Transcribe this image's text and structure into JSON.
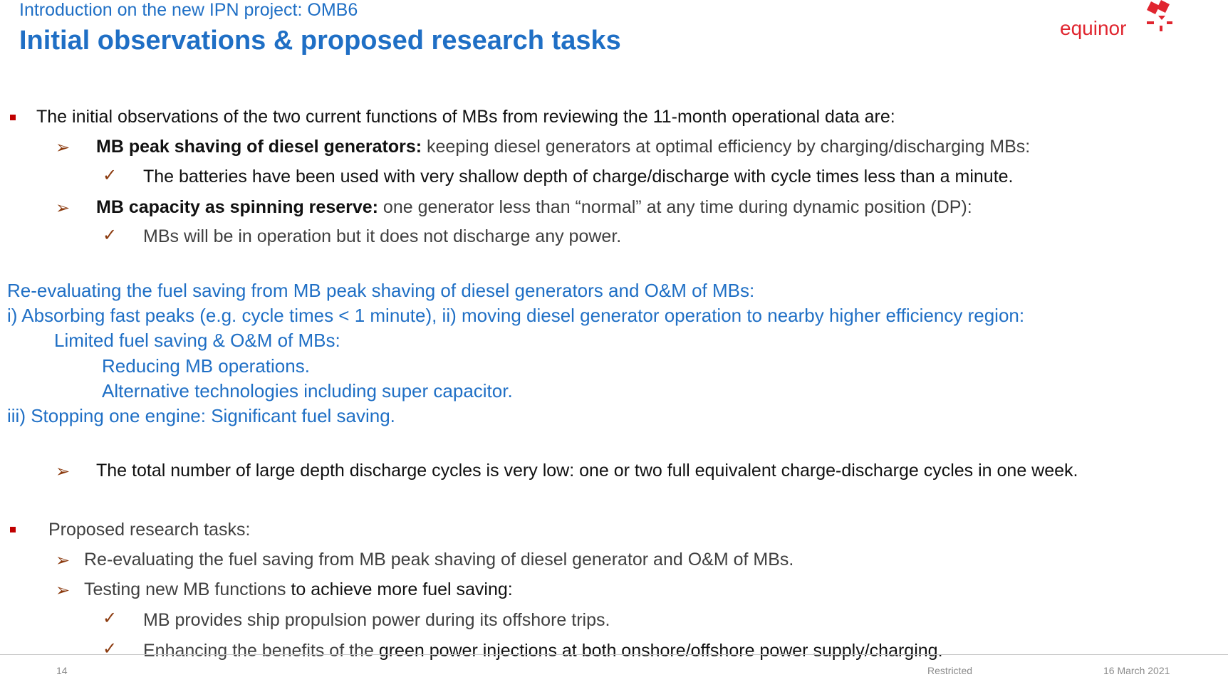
{
  "header": {
    "subtitle": "Introduction on the new IPN project: OMB6",
    "title": "Initial observations & proposed research tasks",
    "logo_text": "equinor"
  },
  "content": {
    "b1": "The initial observations of the two current functions of MBs from reviewing the 11-month operational data are:",
    "b1_1_bold": "MB peak shaving of diesel generators:",
    "b1_1_rest": " keeping diesel generators at optimal efficiency by charging/discharging MBs:",
    "b1_1_1": "The batteries have been used with very shallow depth of charge/discharge with cycle times less than a minute.",
    "b1_2_bold": "MB capacity as spinning reserve:",
    "b1_2_rest": " one generator less than “normal” at any time during dynamic position (DP):",
    "b1_2_1": "MBs will be in operation but it does not discharge any power.",
    "note_1": "Re-evaluating the fuel saving from MB peak shaving of diesel generators and O&M of MBs:",
    "note_2": "i) Absorbing fast peaks (e.g. cycle times < 1 minute), ii) moving diesel generator operation to nearby higher efficiency region:",
    "note_3": "Limited fuel saving & O&M of MBs:",
    "note_4": "Reducing MB operations.",
    "note_5": "Alternative technologies including super capacitor.",
    "note_6": "iii) Stopping one engine: Significant fuel saving.",
    "b1_3": "The total number of large depth discharge cycles is very low: one or two full equivalent charge-discharge cycles in one week.",
    "b2": "Proposed research tasks:",
    "b2_1": "Re-evaluating the fuel saving from MB peak shaving of diesel generator and O&M of MBs.",
    "b2_2_a": "Testing new MB functions",
    "b2_2_b": " to achieve more fuel saving:",
    "b2_2_1": "MB provides ship propulsion power during its offshore trips.",
    "b2_2_2_a": "Enhancing the benefits of the ",
    "b2_2_2_b": "green power injections at both onshore/offshore power supply/charging."
  },
  "footer": {
    "page": "14",
    "classification": "Restricted",
    "date": "16 March 2021"
  },
  "icons": {
    "bullet": "red-square-bullet",
    "arrow": "arrow-bullet",
    "check": "check-mark"
  },
  "colors": {
    "title_blue": "#1f6fc5",
    "logo_red": "#e0252f",
    "bullet_red": "#c00000",
    "arrow_brown": "#8b3a0e"
  }
}
